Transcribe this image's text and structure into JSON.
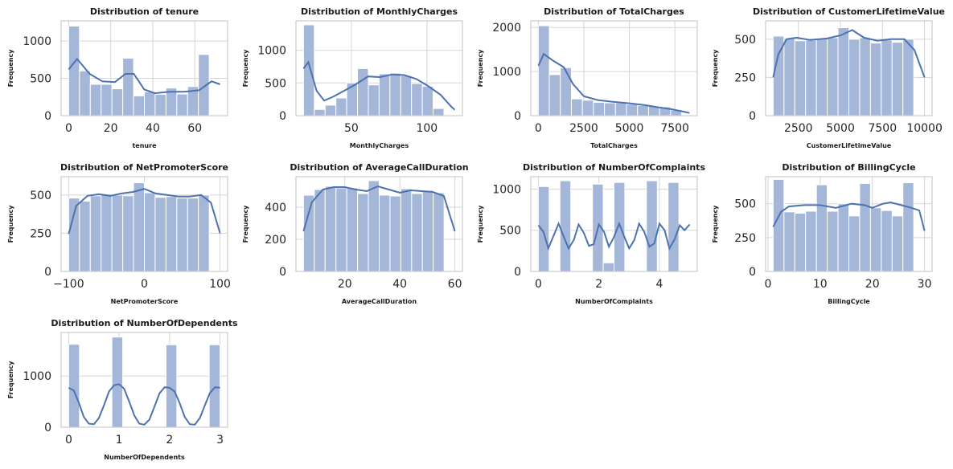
{
  "chart_data": [
    {
      "type": "bar",
      "title": "Distribution of tenure",
      "xlabel": "tenure",
      "ylabel": "Frequency",
      "xlim": [
        -3.6,
        75.6
      ],
      "ylim": [
        0,
        1270
      ],
      "xticks": [
        0,
        20,
        40,
        60
      ],
      "yticks": [
        0,
        500,
        1000
      ],
      "bin_edges": [
        0,
        5.14,
        10.29,
        15.43,
        20.57,
        25.71,
        30.86,
        36,
        41.14,
        46.29,
        51.43,
        56.57,
        61.71,
        66.86,
        72
      ],
      "values": [
        1200,
        600,
        420,
        420,
        360,
        770,
        265,
        320,
        285,
        370,
        290,
        390,
        820,
        0
      ],
      "kde": [
        [
          0,
          620
        ],
        [
          4,
          760
        ],
        [
          10,
          560
        ],
        [
          16,
          460
        ],
        [
          22,
          450
        ],
        [
          27,
          560
        ],
        [
          31,
          560
        ],
        [
          36,
          350
        ],
        [
          41,
          300
        ],
        [
          48,
          320
        ],
        [
          55,
          320
        ],
        [
          62,
          340
        ],
        [
          68,
          460
        ],
        [
          72,
          420
        ]
      ]
    },
    {
      "type": "bar",
      "title": "Distribution of MonthlyCharges",
      "xlabel": "MonthlyCharges",
      "ylabel": "Frequency",
      "xlim": [
        13.3,
        123.5
      ],
      "ylim": [
        0,
        1450
      ],
      "xticks": [
        50,
        100
      ],
      "yticks": [
        0,
        500,
        1000
      ],
      "bin_edges": [
        18.3,
        25.45,
        32.6,
        39.75,
        46.9,
        54.05,
        61.2,
        68.35,
        75.5,
        82.65,
        89.8,
        96.95,
        104.1,
        111.25,
        118.4
      ],
      "values": [
        1390,
        95,
        160,
        270,
        500,
        720,
        470,
        640,
        650,
        610,
        490,
        450,
        110,
        0
      ],
      "kde": [
        [
          18.3,
          720
        ],
        [
          21.5,
          820
        ],
        [
          27,
          380
        ],
        [
          32,
          230
        ],
        [
          38,
          290
        ],
        [
          46,
          390
        ],
        [
          53,
          480
        ],
        [
          61,
          600
        ],
        [
          69,
          590
        ],
        [
          77,
          630
        ],
        [
          85,
          620
        ],
        [
          93,
          560
        ],
        [
          101,
          450
        ],
        [
          109,
          320
        ],
        [
          116,
          140
        ],
        [
          118.4,
          90
        ]
      ]
    },
    {
      "type": "bar",
      "title": "Distribution of TotalCharges",
      "xlabel": "TotalCharges",
      "ylabel": "Frequency",
      "xlim": [
        -413,
        8730
      ],
      "ylim": [
        0,
        2150
      ],
      "xticks": [
        0,
        2500,
        5000,
        7500
      ],
      "yticks": [
        0,
        1000,
        2000
      ],
      "bin_edges": [
        0,
        605.5,
        1211,
        1816.5,
        2422,
        3027.5,
        3633,
        4238.5,
        4844,
        5449.5,
        6055,
        6660.5,
        7266,
        7871.5,
        8477
      ],
      "values": [
        2040,
        930,
        1090,
        380,
        350,
        300,
        290,
        290,
        260,
        230,
        210,
        200,
        130,
        0
      ],
      "kde": [
        [
          0,
          1130
        ],
        [
          300,
          1400
        ],
        [
          800,
          1250
        ],
        [
          1400,
          1100
        ],
        [
          1900,
          720
        ],
        [
          2500,
          440
        ],
        [
          3300,
          350
        ],
        [
          4200,
          310
        ],
        [
          5000,
          280
        ],
        [
          5800,
          240
        ],
        [
          6600,
          190
        ],
        [
          7400,
          140
        ],
        [
          8000,
          90
        ],
        [
          8300,
          60
        ]
      ]
    },
    {
      "type": "bar",
      "title": "Distribution of CustomerLifetimeValue",
      "xlabel": "CustomerLifetimeValue",
      "ylabel": "Frequency",
      "xlim": [
        550,
        10450
      ],
      "ylim": [
        0,
        620
      ],
      "xticks": [
        2500,
        5000,
        7500,
        10000
      ],
      "yticks": [
        0,
        250,
        500
      ],
      "bin_edges": [
        1000,
        1642.86,
        2285.71,
        2928.57,
        3571.43,
        4214.29,
        4857.14,
        5500,
        6142.86,
        6785.71,
        7428.57,
        8071.43,
        8714.29,
        9357.14,
        10000
      ],
      "values": [
        520,
        505,
        490,
        495,
        505,
        510,
        575,
        500,
        510,
        475,
        495,
        480,
        500,
        0
      ],
      "kde": [
        [
          1000,
          250
        ],
        [
          1300,
          400
        ],
        [
          1800,
          500
        ],
        [
          2400,
          510
        ],
        [
          3200,
          495
        ],
        [
          4200,
          505
        ],
        [
          5000,
          525
        ],
        [
          5700,
          560
        ],
        [
          6400,
          510
        ],
        [
          7200,
          490
        ],
        [
          8000,
          500
        ],
        [
          8800,
          500
        ],
        [
          9400,
          430
        ],
        [
          10000,
          250
        ]
      ]
    },
    {
      "type": "bar",
      "title": "Distribution of NetPromoterScore",
      "xlabel": "NetPromoterScore",
      "ylabel": "Frequency",
      "xlim": [
        -110,
        110
      ],
      "ylim": [
        0,
        620
      ],
      "xticks": [
        -100,
        0,
        100
      ],
      "yticks": [
        0,
        250,
        500
      ],
      "bin_edges": [
        -100,
        -85.71,
        -71.43,
        -57.14,
        -42.86,
        -28.57,
        -14.29,
        0,
        14.29,
        28.57,
        42.86,
        57.14,
        71.43,
        85.71,
        100
      ],
      "values": [
        480,
        460,
        495,
        505,
        500,
        495,
        580,
        515,
        485,
        490,
        480,
        480,
        500,
        0
      ],
      "kde": [
        [
          -100,
          245
        ],
        [
          -90,
          430
        ],
        [
          -75,
          495
        ],
        [
          -60,
          505
        ],
        [
          -45,
          495
        ],
        [
          -30,
          510
        ],
        [
          -15,
          520
        ],
        [
          0,
          540
        ],
        [
          15,
          510
        ],
        [
          30,
          500
        ],
        [
          45,
          490
        ],
        [
          60,
          490
        ],
        [
          75,
          500
        ],
        [
          88,
          450
        ],
        [
          100,
          250
        ]
      ]
    },
    {
      "type": "bar",
      "title": "Distribution of AverageCallDuration",
      "xlabel": "AverageCallDuration",
      "ylabel": "Frequency",
      "xlim": [
        2.25,
        62.75
      ],
      "ylim": [
        0,
        590
      ],
      "xticks": [
        20,
        40,
        60
      ],
      "yticks": [
        0,
        200,
        400
      ],
      "bin_edges": [
        5,
        8.93,
        12.86,
        16.79,
        20.71,
        24.64,
        28.57,
        32.5,
        36.43,
        40.36,
        44.29,
        48.21,
        52.14,
        56.07,
        60
      ],
      "values": [
        475,
        510,
        530,
        520,
        520,
        485,
        565,
        475,
        470,
        515,
        485,
        505,
        490,
        0
      ],
      "kde": [
        [
          5,
          250
        ],
        [
          8,
          430
        ],
        [
          12,
          510
        ],
        [
          16,
          525
        ],
        [
          20,
          525
        ],
        [
          24,
          510
        ],
        [
          28,
          500
        ],
        [
          32,
          530
        ],
        [
          36,
          510
        ],
        [
          40,
          490
        ],
        [
          44,
          505
        ],
        [
          48,
          500
        ],
        [
          52,
          495
        ],
        [
          56,
          470
        ],
        [
          60,
          250
        ]
      ]
    },
    {
      "type": "bar",
      "title": "Distribution of NumberOfComplaints",
      "xlabel": "NumberOfComplaints",
      "ylabel": "Frequency",
      "xlim": [
        -0.25,
        5.25
      ],
      "ylim": [
        0,
        1150
      ],
      "xticks": [
        0,
        2,
        4
      ],
      "yticks": [
        0,
        500,
        1000
      ],
      "bin_edges": [
        0,
        0.357,
        0.714,
        1.071,
        1.429,
        1.786,
        2.143,
        2.5,
        2.857,
        3.214,
        3.571,
        3.929,
        4.286,
        4.643,
        5
      ],
      "values": [
        1030,
        0,
        1100,
        0,
        0,
        1060,
        105,
        1080,
        0,
        0,
        1100,
        0,
        1080,
        0
      ],
      "kde": [
        [
          0,
          560
        ],
        [
          0.17,
          480
        ],
        [
          0.33,
          280
        ],
        [
          0.5,
          430
        ],
        [
          0.67,
          580
        ],
        [
          0.83,
          430
        ],
        [
          1.0,
          280
        ],
        [
          1.17,
          380
        ],
        [
          1.33,
          570
        ],
        [
          1.5,
          470
        ],
        [
          1.67,
          310
        ],
        [
          1.83,
          330
        ],
        [
          2.0,
          570
        ],
        [
          2.17,
          480
        ],
        [
          2.33,
          300
        ],
        [
          2.5,
          420
        ],
        [
          2.67,
          580
        ],
        [
          2.83,
          430
        ],
        [
          3.0,
          280
        ],
        [
          3.17,
          380
        ],
        [
          3.33,
          580
        ],
        [
          3.5,
          480
        ],
        [
          3.67,
          300
        ],
        [
          3.83,
          340
        ],
        [
          4.0,
          580
        ],
        [
          4.17,
          500
        ],
        [
          4.33,
          280
        ],
        [
          4.5,
          390
        ],
        [
          4.67,
          560
        ],
        [
          4.83,
          500
        ],
        [
          5.0,
          570
        ]
      ]
    },
    {
      "type": "bar",
      "title": "Distribution of BillingCycle",
      "xlabel": "BillingCycle",
      "ylabel": "Frequency",
      "xlim": [
        -0.45,
        31.45
      ],
      "ylim": [
        0,
        700
      ],
      "xticks": [
        0,
        10,
        20,
        30
      ],
      "yticks": [
        0,
        250,
        500
      ],
      "bin_edges": [
        1,
        3.07,
        5.14,
        7.21,
        9.29,
        11.36,
        13.43,
        15.5,
        17.57,
        19.64,
        21.71,
        23.79,
        25.86,
        27.93,
        30
      ],
      "values": [
        680,
        440,
        430,
        445,
        640,
        445,
        500,
        410,
        650,
        470,
        450,
        410,
        655,
        0
      ],
      "kde": [
        [
          1,
          330
        ],
        [
          2.5,
          440
        ],
        [
          4,
          480
        ],
        [
          7,
          490
        ],
        [
          10,
          490
        ],
        [
          13,
          470
        ],
        [
          16,
          500
        ],
        [
          18.5,
          490
        ],
        [
          20,
          470
        ],
        [
          22,
          500
        ],
        [
          23.5,
          510
        ],
        [
          25.5,
          490
        ],
        [
          27.5,
          470
        ],
        [
          29,
          450
        ],
        [
          30,
          300
        ]
      ]
    },
    {
      "type": "bar",
      "title": "Distribution of NumberOfDependents",
      "xlabel": "NumberOfDependents",
      "ylabel": "Frequency",
      "xlim": [
        -0.15,
        3.15
      ],
      "ylim": [
        0,
        1850
      ],
      "xticks": [
        0,
        1,
        2,
        3
      ],
      "yticks": [
        0,
        1000
      ],
      "bin_edges": [
        0,
        0.214,
        0.429,
        0.643,
        0.857,
        1.071,
        1.286,
        1.5,
        1.714,
        1.929,
        2.143,
        2.357,
        2.571,
        2.786,
        3
      ],
      "values": [
        1620,
        0,
        0,
        0,
        1760,
        0,
        0,
        0,
        0,
        1610,
        0,
        0,
        0,
        1610
      ],
      "kde": [
        [
          0,
          770
        ],
        [
          0.1,
          720
        ],
        [
          0.2,
          480
        ],
        [
          0.3,
          200
        ],
        [
          0.4,
          70
        ],
        [
          0.5,
          60
        ],
        [
          0.6,
          180
        ],
        [
          0.7,
          430
        ],
        [
          0.8,
          700
        ],
        [
          0.9,
          820
        ],
        [
          1.0,
          840
        ],
        [
          1.1,
          750
        ],
        [
          1.2,
          500
        ],
        [
          1.3,
          230
        ],
        [
          1.4,
          70
        ],
        [
          1.5,
          50
        ],
        [
          1.6,
          150
        ],
        [
          1.7,
          400
        ],
        [
          1.8,
          660
        ],
        [
          1.9,
          780
        ],
        [
          2.0,
          770
        ],
        [
          2.1,
          700
        ],
        [
          2.2,
          470
        ],
        [
          2.3,
          200
        ],
        [
          2.4,
          60
        ],
        [
          2.5,
          50
        ],
        [
          2.6,
          180
        ],
        [
          2.7,
          430
        ],
        [
          2.8,
          670
        ],
        [
          2.9,
          780
        ],
        [
          3.0,
          770
        ]
      ]
    }
  ]
}
